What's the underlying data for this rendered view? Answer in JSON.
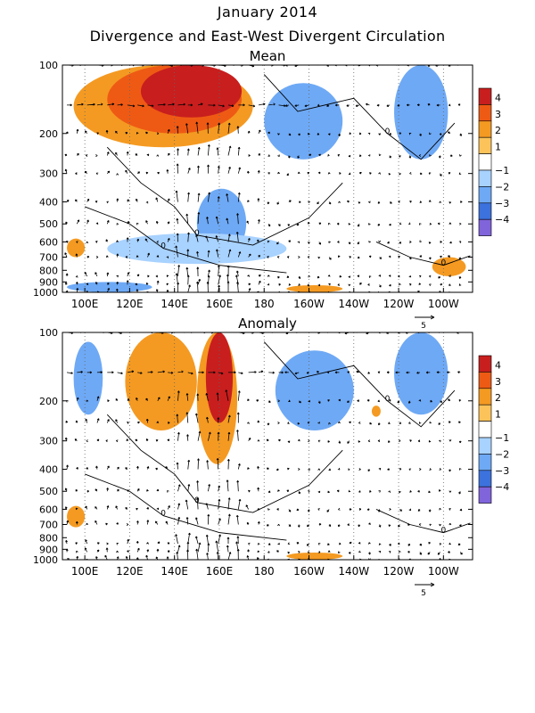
{
  "header": {
    "title": "January 2014",
    "subtitle": "Divergence and East-West Divergent Circulation"
  },
  "chart_data": [
    {
      "type": "heatmap",
      "title": "Mean",
      "xlabel": "",
      "ylabel": "",
      "x_ticks": [
        "100E",
        "120E",
        "140E",
        "160E",
        "180",
        "160W",
        "140W",
        "120W",
        "100W"
      ],
      "x_tick_lon": [
        100,
        120,
        140,
        160,
        180,
        200,
        220,
        240,
        260
      ],
      "xlim_lon": [
        90,
        273
      ],
      "y_ticks": [
        "100",
        "200",
        "300",
        "400",
        "500",
        "600",
        "700",
        "800",
        "900",
        "1000"
      ],
      "y_tick_hpa": [
        100,
        200,
        300,
        400,
        500,
        600,
        700,
        800,
        900,
        1000
      ],
      "ylim_hpa": [
        100,
        1000
      ],
      "y_scale": "log",
      "grid": true,
      "colorbar": {
        "labels": [
          "4",
          "3",
          "2",
          "1",
          "−1",
          "−2",
          "−3",
          "−4"
        ],
        "colors": [
          "#c81e1e",
          "#ee5a14",
          "#f49a22",
          "#fbc35a",
          "#ffffff",
          "#a8d2ff",
          "#6ea9f5",
          "#3c72de",
          "#8064dc"
        ]
      },
      "vector_reference": "5",
      "features": [
        {
          "lon1": 95,
          "lon2": 175,
          "p1": 100,
          "p2": 230,
          "level": "2"
        },
        {
          "lon1": 110,
          "lon2": 170,
          "p1": 100,
          "p2": 200,
          "level": "3"
        },
        {
          "lon1": 125,
          "lon2": 170,
          "p1": 100,
          "p2": 170,
          "level": "4"
        },
        {
          "lon1": 180,
          "lon2": 215,
          "p1": 120,
          "p2": 260,
          "level": "-2"
        },
        {
          "lon1": 238,
          "lon2": 262,
          "p1": 100,
          "p2": 260,
          "level": "-2"
        },
        {
          "lon1": 150,
          "lon2": 172,
          "p1": 350,
          "p2": 700,
          "level": "-2"
        },
        {
          "lon1": 110,
          "lon2": 190,
          "p1": 550,
          "p2": 750,
          "level": "-1"
        },
        {
          "lon1": 92,
          "lon2": 100,
          "p1": 580,
          "p2": 700,
          "level": "2"
        },
        {
          "lon1": 255,
          "lon2": 270,
          "p1": 700,
          "p2": 850,
          "level": "2"
        },
        {
          "lon1": 190,
          "lon2": 215,
          "p1": 930,
          "p2": 1000,
          "level": "2"
        },
        {
          "lon1": 92,
          "lon2": 130,
          "p1": 900,
          "p2": 1000,
          "level": "-2"
        }
      ],
      "contour_labels": [
        "0",
        "0",
        "0",
        "0"
      ]
    },
    {
      "type": "heatmap",
      "title": "Anomaly",
      "xlabel": "",
      "ylabel": "",
      "x_ticks": [
        "100E",
        "120E",
        "140E",
        "160E",
        "180",
        "160W",
        "140W",
        "120W",
        "100W"
      ],
      "x_tick_lon": [
        100,
        120,
        140,
        160,
        180,
        200,
        220,
        240,
        260
      ],
      "xlim_lon": [
        90,
        273
      ],
      "y_ticks": [
        "100",
        "200",
        "300",
        "400",
        "500",
        "600",
        "700",
        "800",
        "900",
        "1000"
      ],
      "y_tick_hpa": [
        100,
        200,
        300,
        400,
        500,
        600,
        700,
        800,
        900,
        1000
      ],
      "ylim_hpa": [
        100,
        1000
      ],
      "y_scale": "log",
      "grid": true,
      "colorbar": {
        "labels": [
          "4",
          "3",
          "2",
          "1",
          "−1",
          "−2",
          "−3",
          "−4"
        ],
        "colors": [
          "#c81e1e",
          "#ee5a14",
          "#f49a22",
          "#fbc35a",
          "#ffffff",
          "#a8d2ff",
          "#6ea9f5",
          "#3c72de",
          "#8064dc"
        ]
      },
      "vector_reference": "5",
      "features": [
        {
          "lon1": 118,
          "lon2": 150,
          "p1": 100,
          "p2": 270,
          "level": "2"
        },
        {
          "lon1": 150,
          "lon2": 168,
          "p1": 100,
          "p2": 380,
          "level": "2"
        },
        {
          "lon1": 154,
          "lon2": 166,
          "p1": 100,
          "p2": 250,
          "level": "4"
        },
        {
          "lon1": 95,
          "lon2": 108,
          "p1": 110,
          "p2": 230,
          "level": "-2"
        },
        {
          "lon1": 185,
          "lon2": 220,
          "p1": 120,
          "p2": 270,
          "level": "-2"
        },
        {
          "lon1": 238,
          "lon2": 262,
          "p1": 100,
          "p2": 230,
          "level": "-2"
        },
        {
          "lon1": 92,
          "lon2": 100,
          "p1": 580,
          "p2": 720,
          "level": "2"
        },
        {
          "lon1": 190,
          "lon2": 215,
          "p1": 930,
          "p2": 1000,
          "level": "2"
        },
        {
          "lon1": 228,
          "lon2": 232,
          "p1": 210,
          "p2": 235,
          "level": "2"
        }
      ],
      "contour_labels": [
        "0",
        "0",
        "0",
        "0"
      ]
    }
  ]
}
